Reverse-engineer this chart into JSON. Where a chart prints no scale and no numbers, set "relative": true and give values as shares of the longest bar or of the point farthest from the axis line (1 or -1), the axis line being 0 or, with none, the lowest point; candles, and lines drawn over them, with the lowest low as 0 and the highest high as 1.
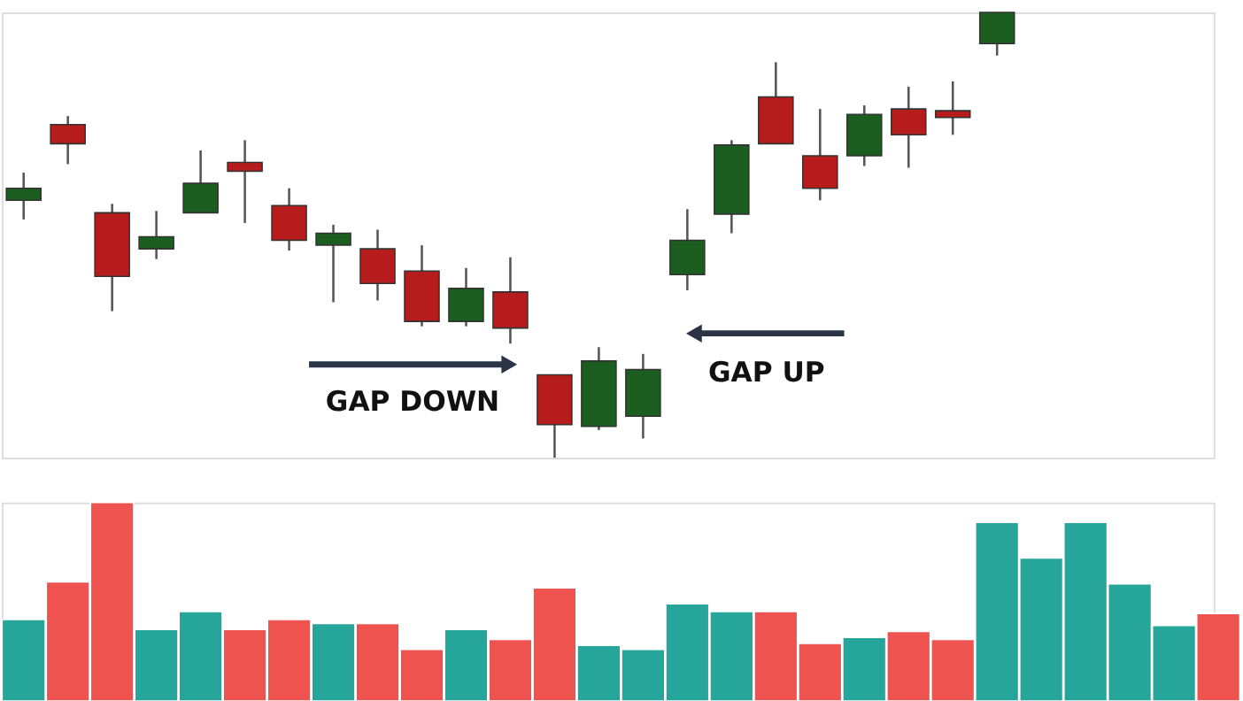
{
  "chart_data": [
    {
      "type": "candlestick",
      "relative": true,
      "categories": [
        null,
        null,
        null,
        null,
        null,
        null,
        null,
        null,
        null,
        null,
        null,
        null,
        null,
        null,
        null,
        null,
        null,
        null,
        null,
        null,
        null,
        null,
        null,
        null,
        null,
        null,
        null,
        null
      ],
      "ohlc": [
        [
          0.578,
          0.64,
          0.535,
          0.605
        ],
        [
          0.748,
          0.767,
          0.659,
          0.705
        ],
        [
          0.55,
          0.57,
          0.329,
          0.407
        ],
        [
          0.469,
          0.554,
          0.446,
          0.496
        ],
        [
          0.55,
          0.69,
          0.55,
          0.616
        ],
        [
          0.663,
          0.713,
          0.527,
          0.643
        ],
        [
          0.566,
          0.605,
          0.465,
          0.488
        ],
        [
          0.477,
          0.523,
          0.349,
          0.504
        ],
        [
          0.469,
          0.512,
          0.353,
          0.391
        ],
        [
          0.419,
          0.477,
          0.295,
          0.306
        ],
        [
          0.306,
          0.426,
          0.295,
          0.38
        ],
        [
          0.372,
          0.45,
          0.256,
          0.291
        ],
        [
          0.186,
          0.186,
          0.0,
          0.074
        ],
        [
          0.07,
          0.248,
          0.062,
          0.217
        ],
        [
          0.093,
          0.233,
          0.043,
          0.198
        ],
        [
          0.411,
          0.558,
          0.376,
          0.488
        ],
        [
          0.547,
          0.713,
          0.504,
          0.702
        ],
        [
          0.81,
          0.888,
          0.705,
          0.705
        ],
        [
          0.678,
          0.783,
          0.578,
          0.605
        ],
        [
          0.678,
          0.791,
          0.655,
          0.771
        ],
        [
          0.783,
          0.833,
          0.651,
          0.725
        ],
        [
          0.779,
          0.845,
          0.725,
          0.764
        ],
        [
          0.93,
          1.0,
          0.903,
          1.0
        ],
        null,
        null,
        null,
        null,
        null
      ],
      "colors": [
        "#1b5e20",
        "#b71c1c",
        "#b71c1c",
        "#1b5e20",
        "#1b5e20",
        "#b71c1c",
        "#b71c1c",
        "#1b5e20",
        "#b71c1c",
        "#b71c1c",
        "#1b5e20",
        "#b71c1c",
        "#b71c1c",
        "#1b5e20",
        "#1b5e20",
        "#1b5e20",
        "#1b5e20",
        "#b71c1c",
        "#b71c1c",
        "#1b5e20",
        "#b71c1c",
        "#b71c1c",
        "#1b5e20",
        null,
        null,
        null,
        null,
        null
      ],
      "annotations": [
        "GAP DOWN",
        "GAP UP"
      ]
    },
    {
      "type": "bar",
      "relative": true,
      "categories": [
        null,
        null,
        null,
        null,
        null,
        null,
        null,
        null,
        null,
        null,
        null,
        null,
        null,
        null,
        null,
        null,
        null,
        null,
        null,
        null,
        null,
        null,
        null,
        null,
        null,
        null,
        null,
        null
      ],
      "values": [
        0.41,
        0.6,
        1,
        0.36,
        0.45,
        0.36,
        0.41,
        0.39,
        0.39,
        0.26,
        0.36,
        0.31,
        0.57,
        0.28,
        0.26,
        0.49,
        0.45,
        0.45,
        0.29,
        0.32,
        0.35,
        0.31,
        0.9,
        0.72,
        0.9,
        0.59,
        0.38,
        0.44
      ],
      "colors": [
        "#26a69a",
        "#ef5350",
        "#ef5350",
        "#26a69a",
        "#26a69a",
        "#ef5350",
        "#ef5350",
        "#26a69a",
        "#ef5350",
        "#ef5350",
        "#26a69a",
        "#ef5350",
        "#ef5350",
        "#26a69a",
        "#26a69a",
        "#26a69a",
        "#26a69a",
        "#ef5350",
        "#ef5350",
        "#26a69a",
        "#ef5350",
        "#ef5350",
        "#26a69a",
        "#26a69a",
        "#26a69a",
        "#26a69a",
        "#26a69a",
        "#ef5350"
      ]
    }
  ]
}
